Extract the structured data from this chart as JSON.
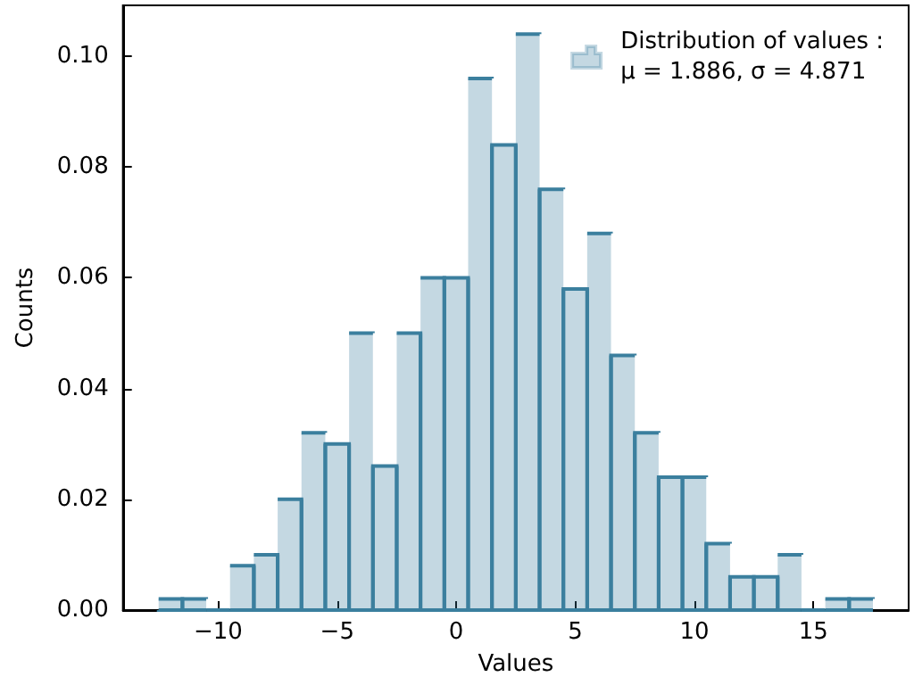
{
  "chart_data": {
    "type": "histogram",
    "xlabel": "Values",
    "ylabel": "Counts",
    "bins": [
      -12.5,
      -11.5,
      -10.5,
      -9.5,
      -8.5,
      -7.5,
      -6.5,
      -5.5,
      -4.5,
      -3.5,
      -2.5,
      -1.5,
      -0.5,
      0.5,
      1.5,
      2.5,
      3.5,
      4.5,
      5.5,
      6.5,
      7.5,
      8.5,
      9.5,
      10.5,
      11.5,
      12.5,
      13.5,
      14.5,
      15.5,
      16.5,
      17.5
    ],
    "series": [
      {
        "name": "Distribution of values :\nμ = 1.886, σ = 4.871",
        "color": "#3b7f9e",
        "values": [
          0.002,
          0.002,
          0,
          0.008,
          0.01,
          0.02,
          0.032,
          0.03,
          0.05,
          0.026,
          0.05,
          0.06,
          0.06,
          0.096,
          0.084,
          0.104,
          0.076,
          0.058,
          0.068,
          0.046,
          0.032,
          0.024,
          0.024,
          0.012,
          0.006,
          0.006,
          0.01,
          0,
          0.002,
          0.002
        ]
      }
    ],
    "xlim": [
      -14,
      19
    ],
    "ylim": [
      0,
      0.1092
    ],
    "xticks": [
      {
        "value": -10,
        "label": "−10"
      },
      {
        "value": -5,
        "label": "−5"
      },
      0,
      5,
      10,
      15
    ],
    "yticks": [
      {
        "value": 0,
        "label": "0.00"
      },
      {
        "value": 0.02,
        "label": "0.02"
      },
      {
        "value": 0.04,
        "label": "0.04"
      },
      {
        "value": 0.06,
        "label": "0.06"
      },
      {
        "value": 0.08,
        "label": "0.08"
      },
      {
        "value": 0.1,
        "label": "0.10"
      }
    ],
    "legend": "top right"
  }
}
